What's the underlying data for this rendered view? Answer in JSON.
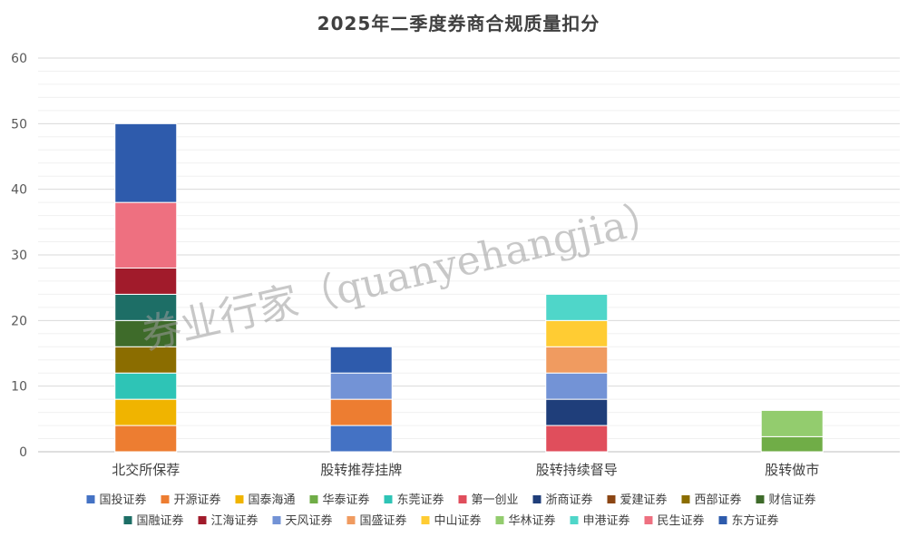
{
  "chart_data": {
    "type": "bar",
    "stacked": true,
    "title": "2025年二季度券商合规质量扣分",
    "xlabel": "",
    "ylabel": "",
    "ylim": [
      0,
      60
    ],
    "yticks": [
      0,
      10,
      20,
      30,
      40,
      50,
      60
    ],
    "grid": true,
    "legend_position": "bottom",
    "watermark": "券业行家（quanyehangjia）",
    "categories": [
      "北交所保荐",
      "股转推荐挂牌",
      "股转持续督导",
      "股转做市"
    ],
    "series": [
      {
        "name": "国投证券",
        "color": "#4472C4",
        "values": [
          0,
          4,
          0,
          0
        ]
      },
      {
        "name": "开源证券",
        "color": "#ED7D31",
        "values": [
          4,
          4,
          0,
          0
        ]
      },
      {
        "name": "国泰海通",
        "color": "#F0B400",
        "values": [
          4,
          0,
          0,
          0
        ]
      },
      {
        "name": "华泰证券",
        "color": "#70AD47",
        "values": [
          0,
          0,
          0,
          2.3
        ]
      },
      {
        "name": "东莞证券",
        "color": "#2EC4B6",
        "values": [
          4,
          0,
          0,
          0
        ]
      },
      {
        "name": "第一创业",
        "color": "#E04E5C",
        "values": [
          0,
          0,
          4,
          0
        ]
      },
      {
        "name": "浙商证券",
        "color": "#1F3E7A",
        "values": [
          0,
          0,
          4,
          0
        ]
      },
      {
        "name": "爱建证券",
        "color": "#8B4513",
        "values": [
          0,
          0,
          0,
          0
        ]
      },
      {
        "name": "西部证券",
        "color": "#8B6D00",
        "values": [
          4,
          0,
          0,
          0
        ]
      },
      {
        "name": "财信证券",
        "color": "#3E6B2A",
        "values": [
          4,
          0,
          0,
          0
        ]
      },
      {
        "name": "国融证券",
        "color": "#1D6E66",
        "values": [
          4,
          0,
          0,
          0
        ]
      },
      {
        "name": "江海证券",
        "color": "#A11B2B",
        "values": [
          4,
          0,
          0,
          0
        ]
      },
      {
        "name": "天风证券",
        "color": "#7393D6",
        "values": [
          0,
          4,
          4,
          0
        ]
      },
      {
        "name": "国盛证券",
        "color": "#F09B60",
        "values": [
          0,
          0,
          4,
          0
        ]
      },
      {
        "name": "中山证券",
        "color": "#FFCC33",
        "values": [
          0,
          0,
          4,
          0
        ]
      },
      {
        "name": "华林证券",
        "color": "#93CC6E",
        "values": [
          0,
          0,
          0,
          4
        ]
      },
      {
        "name": "申港证券",
        "color": "#4FD6C9",
        "values": [
          0,
          0,
          4,
          0
        ]
      },
      {
        "name": "民生证券",
        "color": "#EE7080",
        "values": [
          10,
          0,
          0,
          0
        ]
      },
      {
        "name": "东方证券",
        "color": "#2E5BAC",
        "values": [
          12,
          4,
          0,
          0
        ]
      }
    ]
  }
}
